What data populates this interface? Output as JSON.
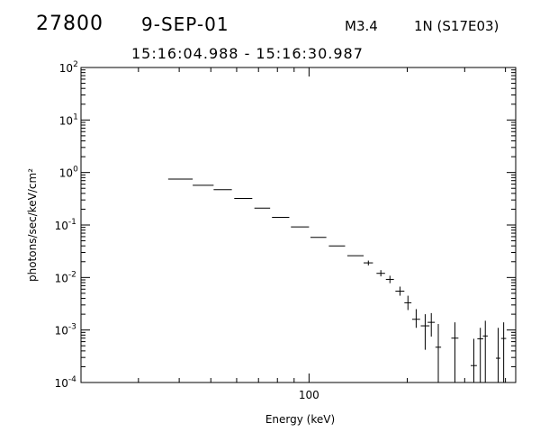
{
  "header": {
    "id": "27800",
    "date": "9-SEP-01",
    "goes_class": "M3.4",
    "location": "1N (S17E03)",
    "time_range": "15:16:04.988 - 15:16:30.987"
  },
  "chart_data": {
    "type": "scatter",
    "xlabel": "Energy (keV)",
    "ylabel": "photons/sec/keV/cm²",
    "xscale": "log",
    "yscale": "log",
    "xlim": [
      20,
      430
    ],
    "ylim": [
      0.0001,
      100
    ],
    "x_tick_labels": [
      "100"
    ],
    "y_tick_labels": [
      {
        "value": 0.0001,
        "base": "10",
        "exp": "-4"
      },
      {
        "value": 0.001,
        "base": "10",
        "exp": "-3"
      },
      {
        "value": 0.01,
        "base": "10",
        "exp": "-2"
      },
      {
        "value": 0.1,
        "base": "10",
        "exp": "-1"
      },
      {
        "value": 1,
        "base": "10",
        "exp": "0"
      },
      {
        "value": 10,
        "base": "10",
        "exp": "1"
      },
      {
        "value": 100,
        "base": "10",
        "exp": "2"
      }
    ],
    "grid": false,
    "series": [
      {
        "points": [
          {
            "x": 40.5,
            "xlo": 37.0,
            "xhi": 44.0,
            "y": 0.75
          },
          {
            "x": 47.5,
            "xlo": 44.0,
            "xhi": 51.0,
            "y": 0.57
          },
          {
            "x": 54.5,
            "xlo": 51.0,
            "xhi": 58.0,
            "y": 0.47
          },
          {
            "x": 63.0,
            "xlo": 59.0,
            "xhi": 67.0,
            "y": 0.32
          },
          {
            "x": 72.0,
            "xlo": 68.0,
            "xhi": 76.0,
            "y": 0.21
          },
          {
            "x": 82.0,
            "xlo": 77.0,
            "xhi": 87.0,
            "y": 0.14
          },
          {
            "x": 94.0,
            "xlo": 88.0,
            "xhi": 100.0,
            "y": 0.092
          },
          {
            "x": 107.0,
            "xlo": 101.0,
            "xhi": 113.0,
            "y": 0.058
          },
          {
            "x": 122.0,
            "xlo": 115.0,
            "xhi": 129.0,
            "y": 0.04
          },
          {
            "x": 139.0,
            "xlo": 131.0,
            "xhi": 147.0,
            "y": 0.026
          },
          {
            "x": 152.0,
            "xlo": 147.0,
            "xhi": 157.0,
            "y": 0.019,
            "ylo": 0.017,
            "yhi": 0.021
          },
          {
            "x": 166.0,
            "xlo": 161.0,
            "xhi": 171.0,
            "y": 0.012,
            "ylo": 0.0105,
            "yhi": 0.0138
          },
          {
            "x": 177.0,
            "xlo": 172.0,
            "xhi": 182.0,
            "y": 0.0092,
            "ylo": 0.0078,
            "yhi": 0.0108
          },
          {
            "x": 190.0,
            "xlo": 184.0,
            "xhi": 196.0,
            "y": 0.0055,
            "ylo": 0.0045,
            "yhi": 0.0067
          },
          {
            "x": 201.0,
            "xlo": 196.0,
            "xhi": 206.0,
            "y": 0.0033,
            "ylo": 0.0024,
            "yhi": 0.0045
          },
          {
            "x": 213.0,
            "xlo": 207.0,
            "xhi": 219.0,
            "y": 0.0016,
            "ylo": 0.0011,
            "yhi": 0.0025
          },
          {
            "x": 227.0,
            "xlo": 220.0,
            "xhi": 234.0,
            "y": 0.0012,
            "ylo": 0.00042,
            "yhi": 0.002
          },
          {
            "x": 237.0,
            "xlo": 231.0,
            "xhi": 243.0,
            "y": 0.0014,
            "ylo": 0.00075,
            "yhi": 0.0021
          },
          {
            "x": 249.0,
            "xlo": 244.0,
            "xhi": 254.0,
            "y": 0.00047,
            "ylo": 0.0001,
            "yhi": 0.0013
          },
          {
            "x": 280.0,
            "xlo": 273.0,
            "xhi": 287.0,
            "y": 0.0007,
            "ylo": 0.0001,
            "yhi": 0.0014
          },
          {
            "x": 320.0,
            "xlo": 313.0,
            "xhi": 327.0,
            "y": 0.00021,
            "ylo": 0.0001,
            "yhi": 0.00068
          },
          {
            "x": 335.0,
            "xlo": 328.0,
            "xhi": 342.0,
            "y": 0.00068,
            "ylo": 0.0001,
            "yhi": 0.0011
          },
          {
            "x": 347.0,
            "xlo": 341.0,
            "xhi": 353.0,
            "y": 0.00077,
            "ylo": 0.0001,
            "yhi": 0.0015
          },
          {
            "x": 380.0,
            "xlo": 374.0,
            "xhi": 386.0,
            "y": 0.00029,
            "ylo": 0.0001,
            "yhi": 0.0011
          },
          {
            "x": 395.0,
            "xlo": 388.0,
            "xhi": 402.0,
            "y": 0.00069,
            "ylo": 0.0001,
            "yhi": 0.0014
          }
        ]
      }
    ]
  }
}
